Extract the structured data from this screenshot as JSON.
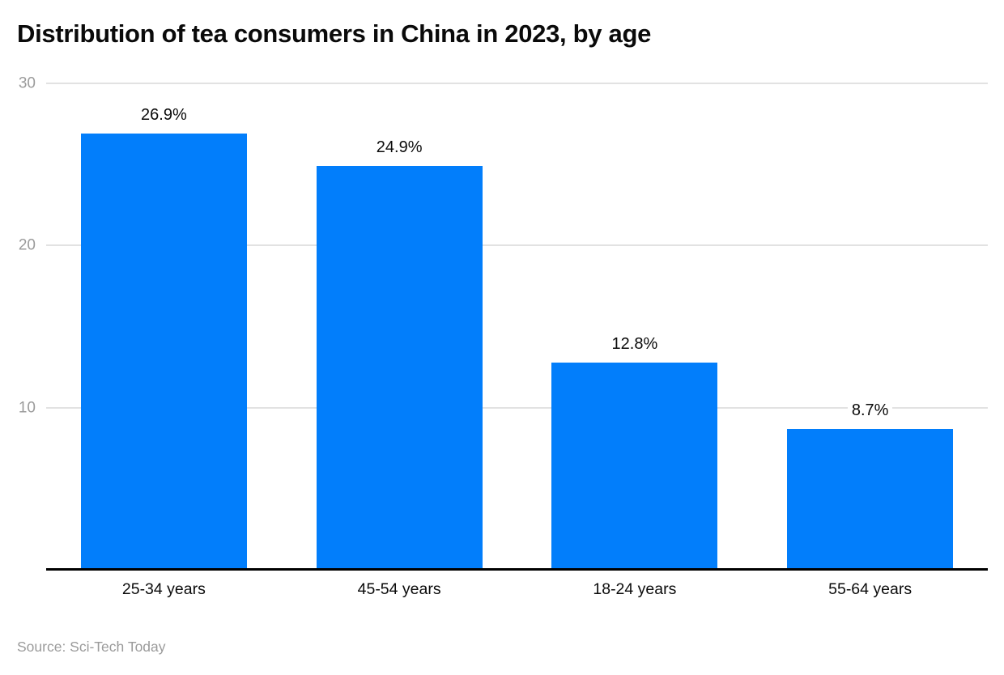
{
  "title": "Distribution of tea consumers in China in 2023, by age",
  "source": "Source: Sci-Tech Today",
  "colors": {
    "bar": "#027efb",
    "grid": "#e2e2e2",
    "axis": "#000000",
    "tick": "#9b9b9b",
    "title": "#0a0a0a",
    "label": "#0b0b0b"
  },
  "chart_data": {
    "type": "bar",
    "title": "Distribution of tea consumers in China in 2023, by age",
    "categories": [
      "25-34 years",
      "45-54 years",
      "18-24 years",
      "55-64 years"
    ],
    "values": [
      26.9,
      24.9,
      12.8,
      8.7
    ],
    "value_labels": [
      "26.9%",
      "24.9%",
      "12.8%",
      "8.7%"
    ],
    "xlabel": "",
    "ylabel": "",
    "ylim": [
      0,
      30
    ],
    "yticks": [
      10,
      20,
      30
    ],
    "grid": true,
    "legend_position": "none",
    "source": "Source: Sci-Tech Today"
  }
}
